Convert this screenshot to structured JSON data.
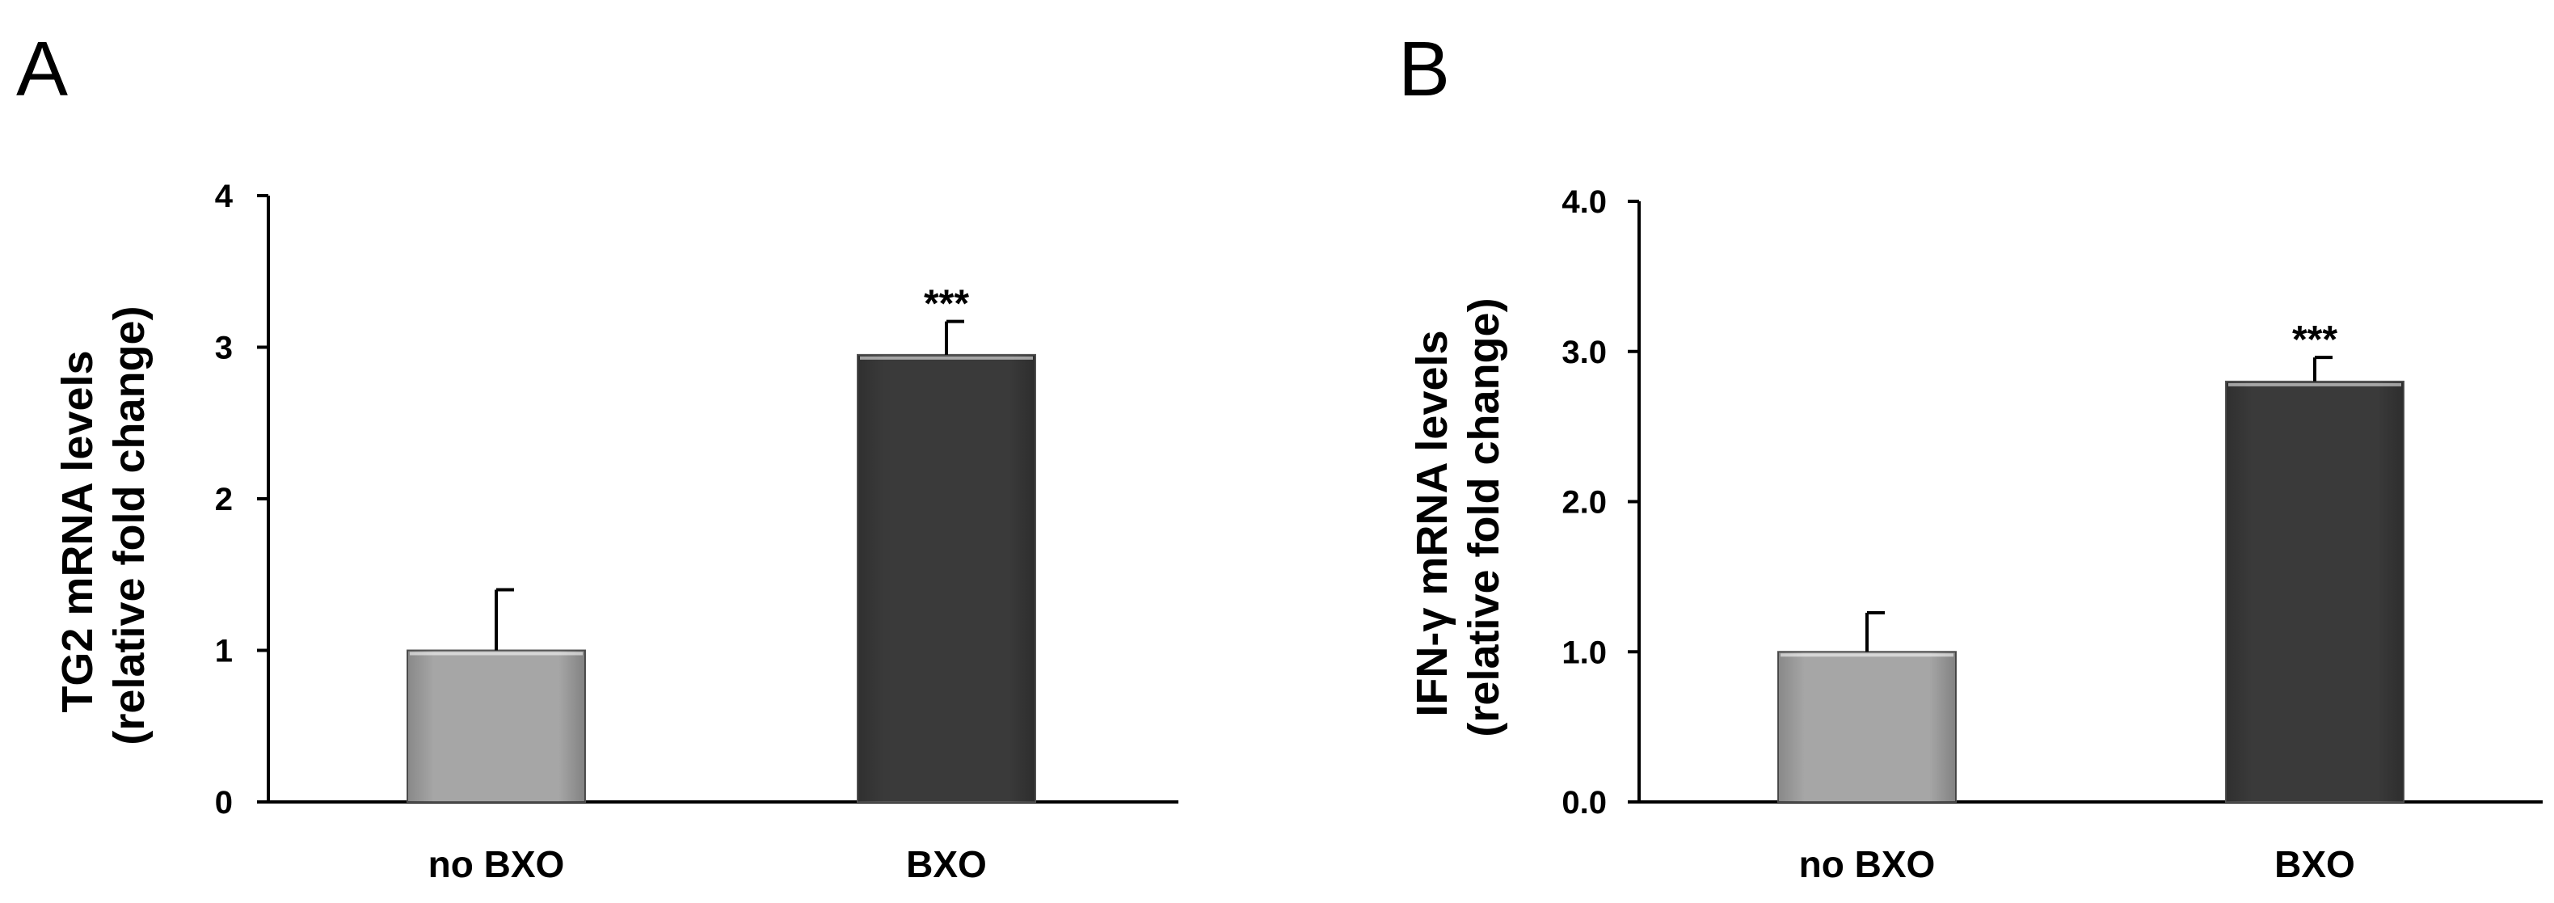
{
  "chart_data": [
    {
      "type": "bar",
      "panel": "A",
      "categories": [
        "no BXO",
        "BXO"
      ],
      "values": [
        1.0,
        2.95
      ],
      "error": [
        0.4,
        0.22
      ],
      "significance": [
        "",
        "***"
      ],
      "colors": [
        "#a6a6a6",
        "#3a3a3a"
      ],
      "title": "",
      "xlabel": "",
      "ylabel_line1": "TG2 mRNA levels",
      "ylabel_line2": "(relative fold change)",
      "ylim": [
        0,
        4
      ],
      "yticks": [
        0,
        1,
        2,
        3,
        4
      ],
      "ytick_labels": [
        "0",
        "1",
        "2",
        "3",
        "4"
      ],
      "grid": false,
      "legend": "none"
    },
    {
      "type": "bar",
      "panel": "B",
      "categories": [
        "no BXO",
        "BXO"
      ],
      "values": [
        1.0,
        2.8
      ],
      "error": [
        0.26,
        0.16
      ],
      "significance": [
        "",
        "***"
      ],
      "colors": [
        "#a6a6a6",
        "#3a3a3a"
      ],
      "title": "",
      "xlabel": "",
      "ylabel_line1": "IFN-γ mRNA levels",
      "ylabel_line2": "(relative fold change)",
      "ylim": [
        0,
        4
      ],
      "yticks": [
        0,
        1,
        2,
        3,
        4
      ],
      "ytick_labels": [
        "0.0",
        "1.0",
        "2.0",
        "3.0",
        "4.0"
      ],
      "grid": false,
      "legend": "none"
    }
  ]
}
